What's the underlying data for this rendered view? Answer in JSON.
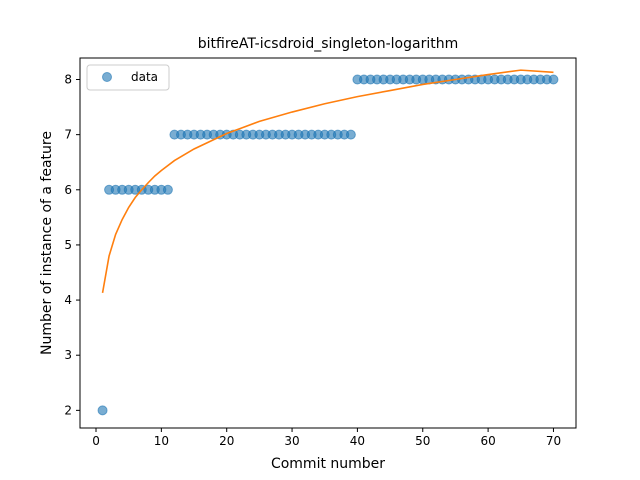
{
  "chart_data": {
    "type": "scatter",
    "title": "bitfireAT-icsdroid_singleton-logarithm",
    "xlabel": "Commit number",
    "ylabel": "Number of instance of a feature",
    "xlim": [
      -2.45,
      73.45
    ],
    "ylim": [
      1.68,
      8.39
    ],
    "xticks": [
      0,
      10,
      20,
      30,
      40,
      50,
      60,
      70
    ],
    "yticks": [
      2,
      3,
      4,
      5,
      6,
      7,
      8
    ],
    "grid": false,
    "legend_position": "top-left",
    "series": [
      {
        "name": "data",
        "kind": "scatter",
        "color": "#1f77b4",
        "x": [
          1,
          2,
          3,
          4,
          5,
          6,
          7,
          8,
          9,
          10,
          11,
          12,
          13,
          14,
          15,
          16,
          17,
          18,
          19,
          20,
          21,
          22,
          23,
          24,
          25,
          26,
          27,
          28,
          29,
          30,
          31,
          32,
          33,
          34,
          35,
          36,
          37,
          38,
          39,
          40,
          41,
          42,
          43,
          44,
          45,
          46,
          47,
          48,
          49,
          50,
          51,
          52,
          53,
          54,
          55,
          56,
          57,
          58,
          59,
          60,
          61,
          62,
          63,
          64,
          65,
          66,
          67,
          68,
          69,
          70
        ],
        "y": [
          2,
          6,
          6,
          6,
          6,
          6,
          6,
          6,
          6,
          6,
          6,
          7,
          7,
          7,
          7,
          7,
          7,
          7,
          7,
          7,
          7,
          7,
          7,
          7,
          7,
          7,
          7,
          7,
          7,
          7,
          7,
          7,
          7,
          7,
          7,
          7,
          7,
          7,
          7,
          8,
          8,
          8,
          8,
          8,
          8,
          8,
          8,
          8,
          8,
          8,
          8,
          8,
          8,
          8,
          8,
          8,
          8,
          8,
          8,
          8,
          8,
          8,
          8,
          8,
          8,
          8,
          8,
          8,
          8,
          8
        ]
      },
      {
        "kind": "line",
        "color": "#ff7f0e",
        "x": [
          1,
          2,
          3,
          4,
          5,
          6,
          7,
          8,
          9,
          10,
          12,
          15,
          20,
          25,
          30,
          35,
          40,
          45,
          50,
          55,
          60,
          65,
          70
        ],
        "y": [
          4.13,
          4.8,
          5.19,
          5.46,
          5.68,
          5.86,
          6.0,
          6.13,
          6.25,
          6.35,
          6.53,
          6.74,
          7.02,
          7.24,
          7.41,
          7.56,
          7.69,
          7.8,
          7.91,
          8.0,
          8.09,
          8.17,
          8.13
        ]
      }
    ]
  }
}
